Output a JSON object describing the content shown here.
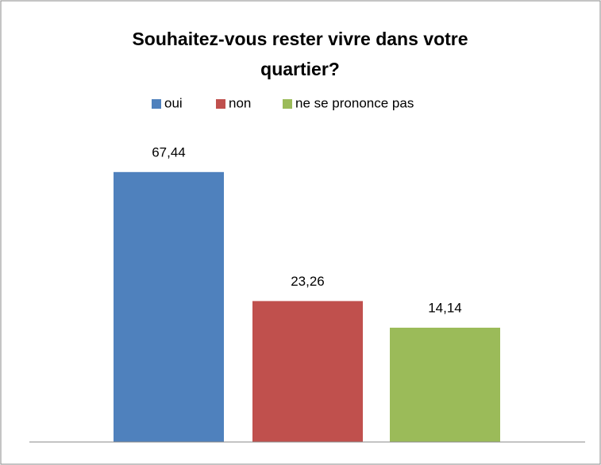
{
  "chart_data": {
    "type": "bar",
    "title": "Souhaitez-vous rester vivre dans votre quartier?",
    "categories": [
      null
    ],
    "series": [
      {
        "name": "oui",
        "color": "#4f81bd",
        "values": [
          67.44
        ],
        "value_labels": [
          "67,44"
        ]
      },
      {
        "name": "non",
        "color": "#c0504d",
        "values": [
          23.26
        ],
        "value_labels": [
          "23,26"
        ]
      },
      {
        "name": "ne se prononce pas",
        "color": "#9bbb59",
        "values": [
          14.14
        ],
        "value_labels": [
          "14,14"
        ]
      }
    ],
    "legend": "top"
  }
}
